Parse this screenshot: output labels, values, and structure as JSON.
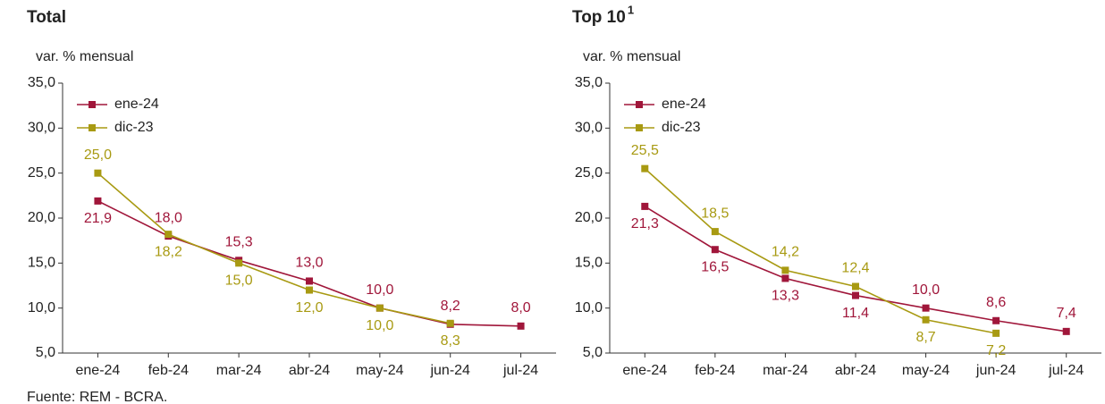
{
  "chart_data": [
    {
      "type": "line",
      "title": "Total",
      "ylabel": "var. % mensual",
      "categories": [
        "ene-24",
        "feb-24",
        "mar-24",
        "abr-24",
        "may-24",
        "jun-24",
        "jul-24"
      ],
      "series": [
        {
          "name": "ene-24",
          "color": "#a0163a",
          "values": [
            21.9,
            18.0,
            15.3,
            13.0,
            10.0,
            8.2,
            8.0
          ],
          "value_labels": [
            "21,9",
            "18,0",
            "15,3",
            "13,0",
            "10,0",
            "8,2",
            "8,0"
          ]
        },
        {
          "name": "dic-23",
          "color": "#a89a12",
          "values": [
            25.0,
            18.2,
            15.0,
            12.0,
            10.0,
            8.3,
            null
          ],
          "value_labels": [
            "25,0",
            "18,2",
            "15,0",
            "12,0",
            "10,0",
            "8,3",
            null
          ]
        }
      ],
      "ylim": [
        5,
        35
      ],
      "yticks": [
        {
          "value": 5,
          "label": "5,0"
        },
        {
          "value": 10,
          "label": "10,0"
        },
        {
          "value": 15,
          "label": "15,0"
        },
        {
          "value": 20,
          "label": "20,0"
        },
        {
          "value": 25,
          "label": "25,0"
        },
        {
          "value": 30,
          "label": "30,0"
        },
        {
          "value": 35,
          "label": "35,0"
        }
      ],
      "grid": false,
      "legend": "upper left"
    },
    {
      "type": "line",
      "title": "Top 10",
      "title_superscript": "1",
      "ylabel": "var. % mensual",
      "categories": [
        "ene-24",
        "feb-24",
        "mar-24",
        "abr-24",
        "may-24",
        "jun-24",
        "jul-24"
      ],
      "series": [
        {
          "name": "ene-24",
          "color": "#a0163a",
          "values": [
            21.3,
            16.5,
            13.3,
            11.4,
            10.0,
            8.6,
            7.4
          ],
          "value_labels": [
            "21,3",
            "16,5",
            "13,3",
            "11,4",
            "10,0",
            "8,6",
            "7,4"
          ]
        },
        {
          "name": "dic-23",
          "color": "#a89a12",
          "values": [
            25.5,
            18.5,
            14.2,
            12.4,
            8.7,
            7.2,
            null
          ],
          "value_labels": [
            "25,5",
            "18,5",
            "14,2",
            "12,4",
            "8,7",
            "7,2",
            null
          ]
        }
      ],
      "ylim": [
        5,
        35
      ],
      "yticks": [
        {
          "value": 5,
          "label": "5,0"
        },
        {
          "value": 10,
          "label": "10,0"
        },
        {
          "value": 15,
          "label": "15,0"
        },
        {
          "value": 20,
          "label": "20,0"
        },
        {
          "value": 25,
          "label": "25,0"
        },
        {
          "value": 30,
          "label": "30,0"
        },
        {
          "value": 35,
          "label": "35,0"
        }
      ],
      "grid": false,
      "legend": "upper left"
    }
  ],
  "source": "Fuente: REM - BCRA."
}
